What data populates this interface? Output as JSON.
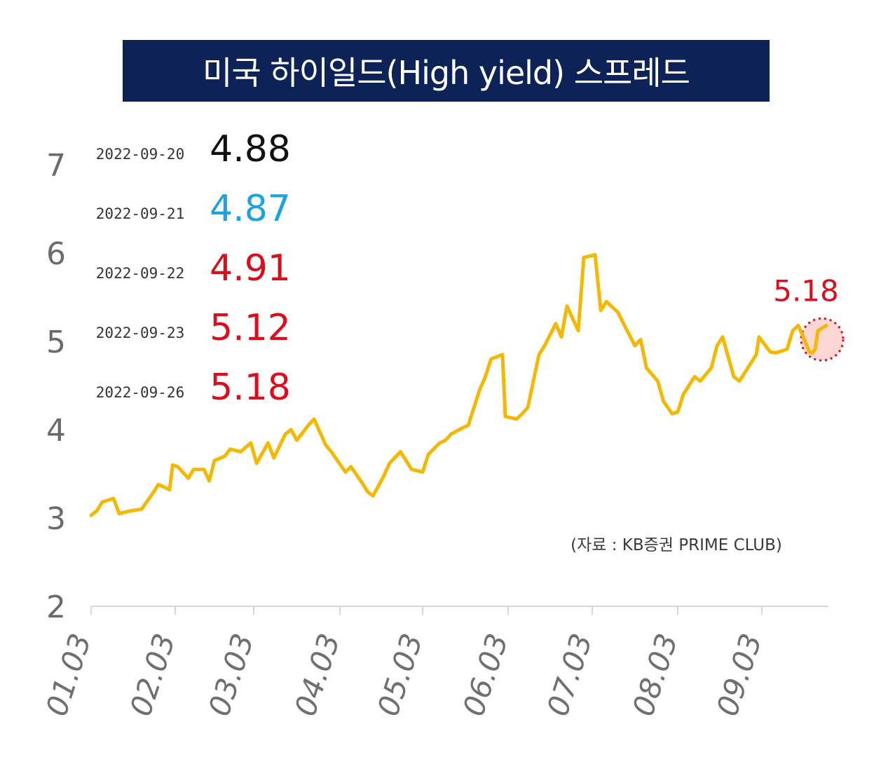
{
  "title": "미국 하이일드(High yield) 스프레드",
  "source_note": "(자료 : KB증권 PRIME CLUB)",
  "colors": {
    "banner_bg": "#0d2257",
    "line": "#f5b800",
    "highlight": "#d90f1d",
    "highlight_fill": "#f8c9c4",
    "blue_value": "#1ba3e0"
  },
  "recent_values": [
    {
      "date": "2022-09-20",
      "value": "4.88",
      "color": "#111111"
    },
    {
      "date": "2022-09-21",
      "value": "4.87",
      "color": "#1ba3e0"
    },
    {
      "date": "2022-09-22",
      "value": "4.91",
      "color": "#d90f1d"
    },
    {
      "date": "2022-09-23",
      "value": "5.12",
      "color": "#d90f1d"
    },
    {
      "date": "2022-09-26",
      "value": "5.18",
      "color": "#d90f1d"
    }
  ],
  "callout_label": "5.18",
  "chart_data": {
    "type": "line",
    "title": "미국 하이일드(High yield) 스프레드",
    "xlabel": "",
    "ylabel": "",
    "ylim": [
      2,
      7
    ],
    "yticks": [
      "2",
      "3",
      "4",
      "5",
      "6",
      "7"
    ],
    "xticks": [
      "01.03",
      "02.03",
      "03.03",
      "04.03",
      "05.03",
      "06.03",
      "07.03",
      "08.03",
      "09.03"
    ],
    "grid": false,
    "series": [
      {
        "x": [
          "01.03",
          "01.05",
          "01.07",
          "01.11",
          "01.13",
          "01.17",
          "01.19",
          "01.21",
          "01.25",
          "01.27",
          "01.31",
          "02.02",
          "02.04",
          "02.08",
          "02.10",
          "02.14",
          "02.16",
          "02.18",
          "02.22",
          "02.24",
          "02.28",
          "03.02",
          "03.04",
          "03.08",
          "03.10",
          "03.14",
          "03.16",
          "03.18",
          "03.22",
          "03.24",
          "03.28",
          "03.30",
          "04.01",
          "04.05",
          "04.07",
          "04.11",
          "04.13",
          "04.15",
          "04.19",
          "04.21",
          "04.25",
          "04.27",
          "04.29",
          "05.03",
          "05.05",
          "05.09",
          "05.11",
          "05.13",
          "05.17",
          "05.19",
          "05.23",
          "05.25",
          "05.27",
          "05.31",
          "06.02",
          "06.06",
          "06.08",
          "06.10",
          "06.14",
          "06.16",
          "06.20",
          "06.22",
          "06.24",
          "06.28",
          "06.30",
          "07.04",
          "07.06",
          "07.08",
          "07.12",
          "07.14",
          "07.18",
          "07.20",
          "07.22",
          "07.26",
          "07.28",
          "08.01",
          "08.03",
          "08.05",
          "08.09",
          "08.11",
          "08.15",
          "08.17",
          "08.19",
          "08.23",
          "08.25",
          "08.29",
          "08.31",
          "09.02",
          "09.06",
          "09.08",
          "09.12",
          "09.14",
          "09.16",
          "09.20",
          "09.21",
          "09.22",
          "09.23",
          "09.26"
        ],
        "values": [
          3.03,
          3.08,
          3.18,
          3.22,
          3.05,
          3.08,
          3.09,
          3.1,
          3.28,
          3.38,
          3.32,
          3.6,
          3.58,
          3.45,
          3.55,
          3.55,
          3.42,
          3.65,
          3.7,
          3.78,
          3.75,
          3.85,
          3.62,
          3.85,
          3.68,
          3.95,
          4.0,
          3.88,
          4.05,
          4.12,
          3.83,
          3.75,
          3.7,
          3.52,
          3.58,
          3.4,
          3.3,
          3.25,
          3.48,
          3.62,
          3.75,
          3.65,
          3.55,
          3.52,
          3.72,
          3.85,
          3.88,
          3.95,
          4.02,
          4.05,
          4.45,
          4.6,
          4.8,
          4.85,
          4.15,
          4.12,
          4.18,
          4.25,
          4.85,
          4.95,
          5.2,
          5.05,
          5.4,
          5.12,
          5.95,
          5.98,
          5.35,
          5.45,
          5.33,
          5.2,
          4.95,
          5.02,
          4.7,
          4.55,
          4.32,
          4.18,
          4.2,
          4.4,
          4.6,
          4.55,
          4.7,
          4.95,
          5.05,
          4.6,
          4.55,
          4.75,
          4.85,
          5.05,
          4.88,
          4.87,
          4.91,
          5.12,
          5.18,
          4.88,
          4.87,
          4.91,
          5.12,
          5.18
        ]
      }
    ]
  }
}
